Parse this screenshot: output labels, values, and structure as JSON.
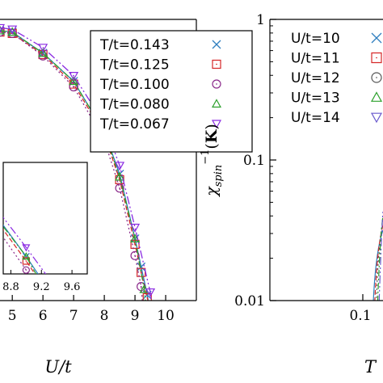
{
  "chart_data": [
    {
      "type": "line",
      "xlabel": "U/t",
      "xlim": [
        4.6,
        11.0
      ],
      "x_ticks": [
        "5",
        "6",
        "7",
        "8",
        "9",
        "10"
      ],
      "legend_position": "top-right",
      "series": [
        {
          "name": "T/t=0.143",
          "marker": "x",
          "color": "#2f7fbf",
          "x": [
            4.6,
            5.0,
            6.0,
            7.0,
            8.0,
            8.5,
            9.0,
            9.2,
            9.4
          ],
          "y": [
            0.96,
            0.955,
            0.88,
            0.78,
            0.6,
            0.45,
            0.22,
            0.12,
            0.02
          ]
        },
        {
          "name": "T/t=0.125",
          "marker": "square",
          "color": "#d62728",
          "x": [
            4.6,
            5.0,
            6.0,
            7.0,
            8.0,
            8.5,
            9.0,
            9.2,
            9.4
          ],
          "y": [
            0.955,
            0.95,
            0.875,
            0.77,
            0.59,
            0.43,
            0.2,
            0.1,
            0.01
          ]
        },
        {
          "name": "T/t=0.100",
          "marker": "circle",
          "color": "#8b2a8b",
          "x": [
            4.6,
            5.0,
            6.0,
            7.0,
            8.0,
            8.5,
            9.0,
            9.2
          ],
          "y": [
            0.955,
            0.95,
            0.87,
            0.76,
            0.57,
            0.4,
            0.16,
            0.05
          ]
        },
        {
          "name": "T/t=0.080",
          "marker": "triangle",
          "color": "#2ca02c",
          "x": [
            4.6,
            5.0,
            6.0,
            7.0,
            8.0,
            8.5,
            9.0,
            9.3
          ],
          "y": [
            0.96,
            0.955,
            0.88,
            0.78,
            0.6,
            0.44,
            0.22,
            0.04
          ]
        },
        {
          "name": "T/t=0.067",
          "marker": "triangle-down",
          "color": "#8a2be2",
          "x": [
            4.6,
            5.0,
            6.0,
            7.0,
            8.0,
            8.5,
            9.0,
            9.5
          ],
          "y": [
            0.97,
            0.965,
            0.9,
            0.8,
            0.63,
            0.48,
            0.26,
            0.03
          ]
        }
      ],
      "inset": {
        "xlim": [
          8.7,
          9.8
        ],
        "x_ticks": [
          "8.8",
          "9.2",
          "9.6"
        ]
      }
    },
    {
      "type": "line",
      "ylabel": "χ_spin^-1(K)",
      "y_scale": "log",
      "ylim": [
        0.01,
        1
      ],
      "y_ticks": [
        "1",
        "0.1",
        "0.01"
      ],
      "x_scale": "log",
      "x_ticks": [
        "0.1"
      ],
      "xlabel": "T",
      "legend_position": "top-right",
      "series": [
        {
          "name": "U/t=10",
          "marker": "x",
          "color": "#2f7fbf"
        },
        {
          "name": "U/t=11",
          "marker": "square",
          "color": "#d62728"
        },
        {
          "name": "U/t=12",
          "marker": "circle",
          "color": "#555555"
        },
        {
          "name": "U/t=13",
          "marker": "triangle",
          "color": "#2ca02c"
        },
        {
          "name": "U/t=14",
          "marker": "triangle-down",
          "color": "#6a5acd"
        }
      ]
    }
  ]
}
